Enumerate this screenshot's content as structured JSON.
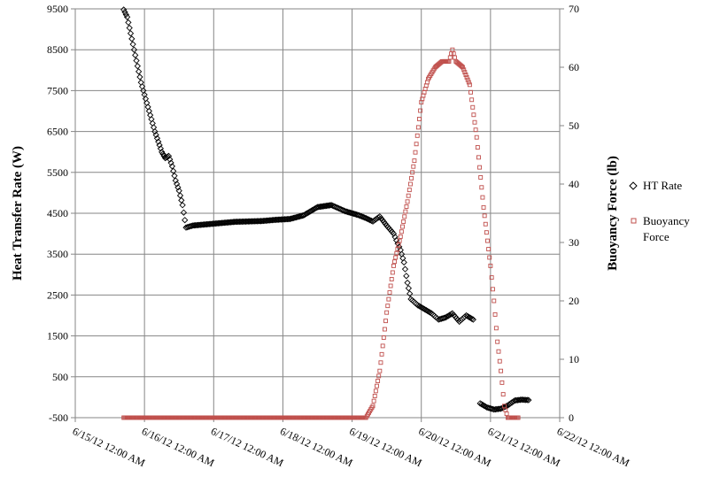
{
  "chart_data": {
    "type": "scatter",
    "title": "",
    "xlabel": "",
    "ylabel": "Heat Transfer Rate (W)",
    "y2label": "Buoyancy Force (lb)",
    "grid": true,
    "legend_position": "right",
    "x_range": [
      "6/15/12 12:00 AM",
      "6/22/12 12:00 AM"
    ],
    "x_ticks": [
      "6/15/12 12:00 AM",
      "6/16/12 12:00 AM",
      "6/17/12 12:00 AM",
      "6/18/12 12:00 AM",
      "6/19/12 12:00 AM",
      "6/20/12 12:00 AM",
      "6/21/12 12:00 AM",
      "6/22/12 12:00 AM"
    ],
    "ylim": [
      -500,
      9500
    ],
    "y_ticks": [
      "9500",
      "8500",
      "7500",
      "6500",
      "5500",
      "4500",
      "3500",
      "2500",
      "1500",
      "500",
      "-500"
    ],
    "y2lim": [
      0,
      70
    ],
    "y2_ticks": [
      "70",
      "60",
      "50",
      "40",
      "30",
      "20",
      "10",
      "0"
    ],
    "colors": {
      "ht_rate": "#000000",
      "buoyancy": "#c0504d",
      "grid": "#868686"
    },
    "series": [
      {
        "name": "HT Rate",
        "axis": "left",
        "marker": "diamond",
        "points": [
          [
            "6/15/12 4:48 PM",
            9480
          ],
          [
            "6/15/12 6:00 PM",
            9300
          ],
          [
            "6/15/12 7:12 PM",
            8900
          ],
          [
            "6/15/12 8:24 PM",
            8500
          ],
          [
            "6/15/12 9:36 PM",
            8100
          ],
          [
            "6/15/12 10:48 PM",
            7700
          ],
          [
            "6/16/12 12:00 AM",
            7400
          ],
          [
            "6/16/12 1:12 AM",
            7100
          ],
          [
            "6/16/12 2:24 AM",
            6800
          ],
          [
            "6/16/12 3:36 AM",
            6500
          ],
          [
            "6/16/12 4:48 AM",
            6250
          ],
          [
            "6/16/12 6:00 AM",
            6000
          ],
          [
            "6/16/12 7:12 AM",
            5850
          ],
          [
            "6/16/12 8:24 AM",
            5900
          ],
          [
            "6/16/12 9:36 AM",
            5650
          ],
          [
            "6/16/12 10:48 AM",
            5300
          ],
          [
            "6/16/12 12:00 PM",
            5050
          ],
          [
            "6/16/12 1:12 PM",
            4700
          ],
          [
            "6/16/12 2:24 PM",
            4150
          ],
          [
            "6/16/12 4:48 PM",
            4200
          ],
          [
            "6/16/12 9:36 PM",
            4230
          ],
          [
            "6/17/12 2:24 AM",
            4260
          ],
          [
            "6/17/12 7:12 AM",
            4290
          ],
          [
            "6/17/12 12:00 PM",
            4300
          ],
          [
            "6/17/12 4:48 PM",
            4310
          ],
          [
            "6/17/12 9:36 PM",
            4340
          ],
          [
            "6/18/12 2:24 AM",
            4360
          ],
          [
            "6/18/12 7:12 AM",
            4450
          ],
          [
            "6/18/12 12:00 PM",
            4650
          ],
          [
            "6/18/12 4:48 PM",
            4700
          ],
          [
            "6/18/12 9:36 PM",
            4550
          ],
          [
            "6/19/12 2:24 AM",
            4450
          ],
          [
            "6/19/12 4:48 AM",
            4380
          ],
          [
            "6/19/12 7:12 AM",
            4300
          ],
          [
            "6/19/12 9:36 AM",
            4420
          ],
          [
            "6/19/12 12:00 PM",
            4200
          ],
          [
            "6/19/12 2:24 PM",
            4000
          ],
          [
            "6/19/12 4:48 PM",
            3600
          ],
          [
            "6/19/12 6:00 PM",
            3300
          ],
          [
            "6/19/12 7:12 PM",
            2800
          ],
          [
            "6/19/12 8:24 PM",
            2400
          ],
          [
            "6/19/12 10:48 PM",
            2250
          ],
          [
            "6/20/12 1:12 AM",
            2150
          ],
          [
            "6/20/12 3:36 AM",
            2050
          ],
          [
            "6/20/12 6:00 AM",
            1900
          ],
          [
            "6/20/12 8:24 AM",
            1950
          ],
          [
            "6/20/12 10:48 AM",
            2050
          ],
          [
            "6/20/12 1:12 PM",
            1850
          ],
          [
            "6/20/12 3:36 PM",
            2000
          ],
          [
            "6/20/12 6:00 PM",
            1900
          ],
          [
            "6/20/12 8:24 PM",
            -150
          ],
          [
            "6/20/12 10:48 PM",
            -250
          ],
          [
            "6/21/12 1:12 AM",
            -300
          ],
          [
            "6/21/12 3:36 AM",
            -280
          ],
          [
            "6/21/12 6:00 AM",
            -200
          ],
          [
            "6/21/12 8:24 AM",
            -80
          ],
          [
            "6/21/12 10:48 AM",
            -60
          ],
          [
            "6/21/12 1:12 PM",
            -70
          ]
        ]
      },
      {
        "name": "Buoyancy Force",
        "axis": "right",
        "marker": "square",
        "points": [
          [
            "6/15/12 4:48 PM",
            0
          ],
          [
            "6/16/12 12:00 AM",
            0
          ],
          [
            "6/17/12 12:00 AM",
            0
          ],
          [
            "6/18/12 12:00 AM",
            0
          ],
          [
            "6/19/12 12:00 AM",
            0
          ],
          [
            "6/19/12 4:48 AM",
            0
          ],
          [
            "6/19/12 7:12 AM",
            2
          ],
          [
            "6/19/12 9:36 AM",
            8
          ],
          [
            "6/19/12 12:00 PM",
            18
          ],
          [
            "6/19/12 2:24 PM",
            26
          ],
          [
            "6/19/12 4:48 PM",
            31
          ],
          [
            "6/19/12 7:12 PM",
            37
          ],
          [
            "6/19/12 9:36 PM",
            44
          ],
          [
            "6/20/12 12:00 AM",
            54
          ],
          [
            "6/20/12 2:24 AM",
            58
          ],
          [
            "6/20/12 4:48 AM",
            60
          ],
          [
            "6/20/12 7:12 AM",
            61
          ],
          [
            "6/20/12 9:36 AM",
            61
          ],
          [
            "6/20/12 10:48 AM",
            63
          ],
          [
            "6/20/12 12:00 PM",
            61
          ],
          [
            "6/20/12 2:24 PM",
            60
          ],
          [
            "6/20/12 4:48 PM",
            57
          ],
          [
            "6/20/12 7:12 PM",
            48
          ],
          [
            "6/20/12 9:36 PM",
            36
          ],
          [
            "6/21/12 12:00 AM",
            26
          ],
          [
            "6/21/12 1:12 AM",
            20
          ],
          [
            "6/21/12 2:24 AM",
            13
          ],
          [
            "6/21/12 3:36 AM",
            8
          ],
          [
            "6/21/12 4:48 AM",
            2
          ],
          [
            "6/21/12 6:00 AM",
            0
          ],
          [
            "6/21/12 9:36 AM",
            0
          ]
        ]
      }
    ]
  }
}
